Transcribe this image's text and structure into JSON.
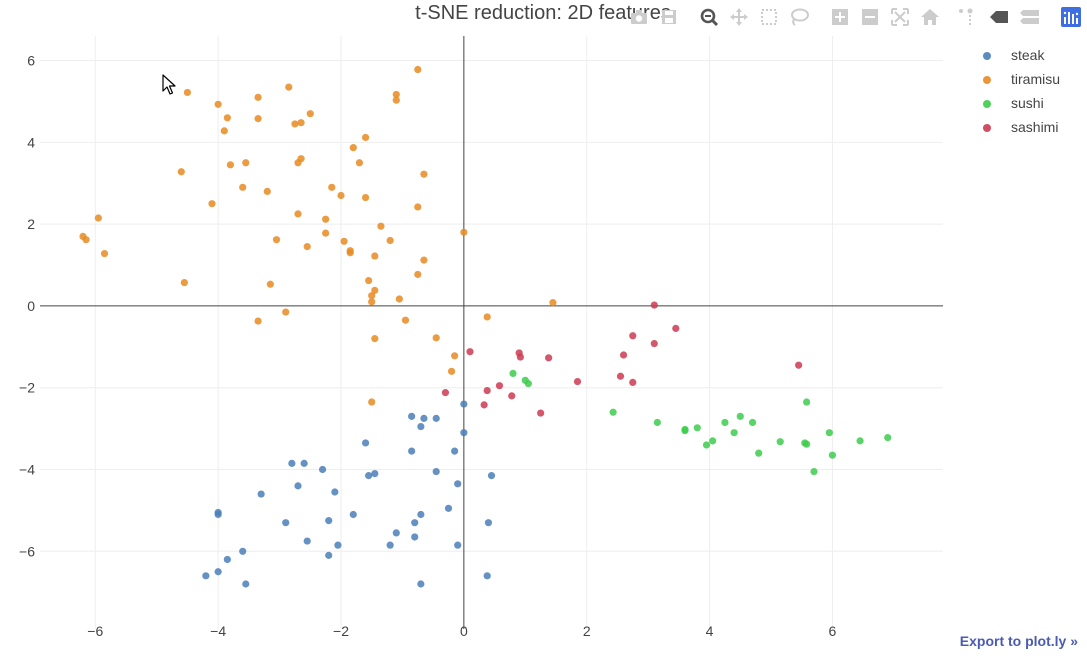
{
  "chart_data": {
    "type": "scatter",
    "title": "t-SNE reduction: 2D features",
    "xlim": [
      -6.9,
      7.8
    ],
    "ylim": [
      -7.9,
      6.6
    ],
    "x_ticks": [
      -6,
      -4,
      -2,
      0,
      2,
      4,
      6
    ],
    "y_ticks": [
      6,
      4,
      2,
      0,
      -2,
      -4,
      -6
    ],
    "x_tick_labels": [
      "−6",
      "−4",
      "−2",
      "0",
      "2",
      "4",
      "6"
    ],
    "y_tick_labels": [
      "6",
      "4",
      "2",
      "0",
      "−2",
      "−4",
      "−6"
    ],
    "grid": true,
    "legend_position": "top-right",
    "series": [
      {
        "name": "steak",
        "color": "#4b7fb8",
        "points": [
          [
            -0.85,
            -2.7
          ],
          [
            -0.65,
            -2.75
          ],
          [
            -0.45,
            -2.75
          ],
          [
            -0.7,
            -2.95
          ],
          [
            0.0,
            -2.4
          ],
          [
            0.0,
            -3.1
          ],
          [
            -1.6,
            -3.35
          ],
          [
            -0.85,
            -3.55
          ],
          [
            -0.15,
            -3.55
          ],
          [
            -2.8,
            -3.85
          ],
          [
            -2.6,
            -3.85
          ],
          [
            -2.3,
            -4.0
          ],
          [
            -1.55,
            -4.15
          ],
          [
            -1.45,
            -4.1
          ],
          [
            -0.45,
            -4.05
          ],
          [
            0.45,
            -4.15
          ],
          [
            -0.1,
            -4.35
          ],
          [
            -2.7,
            -4.4
          ],
          [
            -2.1,
            -4.55
          ],
          [
            -3.3,
            -4.6
          ],
          [
            -4.0,
            -5.05
          ],
          [
            -4.0,
            -5.1
          ],
          [
            -0.25,
            -4.95
          ],
          [
            -0.7,
            -5.1
          ],
          [
            -1.8,
            -5.1
          ],
          [
            -2.9,
            -5.3
          ],
          [
            -2.2,
            -5.25
          ],
          [
            -0.8,
            -5.3
          ],
          [
            0.4,
            -5.3
          ],
          [
            -1.1,
            -5.55
          ],
          [
            -0.8,
            -5.65
          ],
          [
            -2.55,
            -5.75
          ],
          [
            -2.05,
            -5.85
          ],
          [
            -1.2,
            -5.85
          ],
          [
            -0.1,
            -5.85
          ],
          [
            -3.6,
            -6.0
          ],
          [
            -3.85,
            -6.2
          ],
          [
            -2.2,
            -6.1
          ],
          [
            -4.2,
            -6.6
          ],
          [
            -4.0,
            -6.5
          ],
          [
            -3.55,
            -6.8
          ],
          [
            -0.7,
            -6.8
          ],
          [
            0.38,
            -6.6
          ]
        ]
      },
      {
        "name": "tiramisu",
        "color": "#e88b22",
        "points": [
          [
            -0.75,
            5.78
          ],
          [
            -2.85,
            5.35
          ],
          [
            -4.5,
            5.22
          ],
          [
            -3.35,
            5.1
          ],
          [
            -1.1,
            5.17
          ],
          [
            -1.1,
            5.03
          ],
          [
            -4.0,
            4.93
          ],
          [
            -2.5,
            4.7
          ],
          [
            -3.85,
            4.6
          ],
          [
            -3.35,
            4.58
          ],
          [
            -2.75,
            4.45
          ],
          [
            -2.65,
            4.48
          ],
          [
            -3.9,
            4.28
          ],
          [
            -1.6,
            4.12
          ],
          [
            -1.8,
            3.87
          ],
          [
            -2.65,
            3.6
          ],
          [
            -2.7,
            3.5
          ],
          [
            -3.55,
            3.5
          ],
          [
            -3.8,
            3.45
          ],
          [
            -1.7,
            3.5
          ],
          [
            -4.6,
            3.28
          ],
          [
            -0.65,
            3.22
          ],
          [
            -2.15,
            2.9
          ],
          [
            -3.6,
            2.9
          ],
          [
            -3.2,
            2.8
          ],
          [
            -2.0,
            2.7
          ],
          [
            -1.6,
            2.65
          ],
          [
            -4.1,
            2.5
          ],
          [
            -0.75,
            2.42
          ],
          [
            -2.7,
            2.25
          ],
          [
            -2.25,
            2.12
          ],
          [
            -1.35,
            1.95
          ],
          [
            -2.25,
            1.78
          ],
          [
            -1.95,
            1.58
          ],
          [
            -1.2,
            1.6
          ],
          [
            -3.05,
            1.62
          ],
          [
            -2.55,
            1.45
          ],
          [
            -1.85,
            1.3
          ],
          [
            -1.85,
            1.35
          ],
          [
            -1.45,
            1.22
          ],
          [
            -0.65,
            1.12
          ],
          [
            -0.75,
            0.77
          ],
          [
            -1.55,
            0.62
          ],
          [
            -1.45,
            0.38
          ],
          [
            -1.5,
            0.25
          ],
          [
            -1.5,
            0.1
          ],
          [
            -1.05,
            0.17
          ],
          [
            0.0,
            1.8
          ],
          [
            -5.95,
            2.15
          ],
          [
            -6.2,
            1.7
          ],
          [
            -6.15,
            1.62
          ],
          [
            -5.85,
            1.28
          ],
          [
            -4.55,
            0.57
          ],
          [
            -3.15,
            0.53
          ],
          [
            -2.9,
            -0.15
          ],
          [
            -3.35,
            -0.37
          ],
          [
            -0.95,
            -0.35
          ],
          [
            -1.45,
            -0.8
          ],
          [
            -0.45,
            -0.78
          ],
          [
            0.38,
            -0.27
          ],
          [
            -0.15,
            -1.22
          ],
          [
            -0.2,
            -1.6
          ],
          [
            -1.5,
            -2.35
          ],
          [
            1.45,
            0.08
          ]
        ]
      },
      {
        "name": "sushi",
        "color": "#3dcc4d",
        "points": [
          [
            0.8,
            -1.65
          ],
          [
            1.0,
            -1.82
          ],
          [
            1.05,
            -1.9
          ],
          [
            2.43,
            -2.6
          ],
          [
            3.15,
            -2.85
          ],
          [
            3.6,
            -3.02
          ],
          [
            3.6,
            -3.05
          ],
          [
            3.8,
            -2.98
          ],
          [
            4.05,
            -3.3
          ],
          [
            3.95,
            -3.4
          ],
          [
            4.25,
            -2.85
          ],
          [
            4.4,
            -3.1
          ],
          [
            4.5,
            -2.7
          ],
          [
            4.7,
            -2.85
          ],
          [
            4.8,
            -3.6
          ],
          [
            5.15,
            -3.32
          ],
          [
            5.55,
            -3.35
          ],
          [
            5.58,
            -3.38
          ],
          [
            5.58,
            -2.35
          ],
          [
            5.7,
            -4.05
          ],
          [
            5.95,
            -3.1
          ],
          [
            6.0,
            -3.65
          ],
          [
            6.45,
            -3.3
          ],
          [
            6.9,
            -3.22
          ]
        ]
      },
      {
        "name": "sashimi",
        "color": "#cc3a52",
        "points": [
          [
            3.1,
            0.02
          ],
          [
            3.45,
            -0.55
          ],
          [
            2.75,
            -0.73
          ],
          [
            3.1,
            -0.92
          ],
          [
            0.1,
            -1.12
          ],
          [
            0.9,
            -1.15
          ],
          [
            0.92,
            -1.25
          ],
          [
            1.38,
            -1.27
          ],
          [
            2.6,
            -1.2
          ],
          [
            2.55,
            -1.72
          ],
          [
            2.75,
            -1.87
          ],
          [
            1.85,
            -1.85
          ],
          [
            0.58,
            -1.95
          ],
          [
            0.38,
            -2.07
          ],
          [
            0.78,
            -2.2
          ],
          [
            -0.3,
            -2.12
          ],
          [
            0.33,
            -2.42
          ],
          [
            1.25,
            -2.62
          ],
          [
            5.45,
            -1.45
          ]
        ]
      }
    ]
  },
  "modebar": {
    "buttons": [
      "camera-icon",
      "save-icon",
      "zoom-icon",
      "pan-icon",
      "box-select-icon",
      "lasso-select-icon",
      "zoom-in-icon",
      "zoom-out-icon",
      "autoscale-icon",
      "reset-axes-icon",
      "spike-lines-icon",
      "hover-closest-icon",
      "hover-compare-icon",
      "plotly-logo-icon"
    ]
  },
  "export_link": "Export to plot.ly »"
}
